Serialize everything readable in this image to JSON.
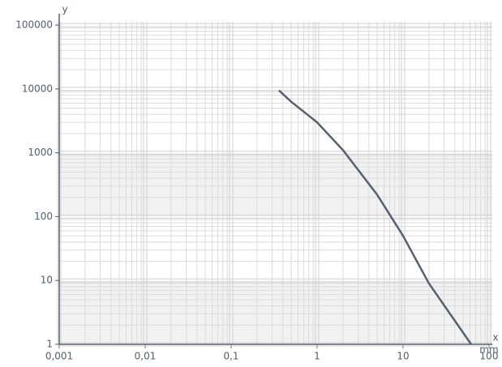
{
  "chart_data": {
    "type": "line",
    "x_label": "x",
    "x_unit": "mm",
    "y_label": "y",
    "xscale": "log",
    "yscale": "log",
    "grid": true,
    "xlim": [
      0.001,
      100
    ],
    "ylim": [
      1,
      100000
    ],
    "xticks": [
      {
        "value": 0.001,
        "label": "0,001"
      },
      {
        "value": 0.01,
        "label": "0,01"
      },
      {
        "value": 0.1,
        "label": "0,1"
      },
      1,
      10,
      100
    ],
    "yticks": [
      1,
      10,
      100,
      1000,
      10000,
      100000
    ],
    "bands": [
      {
        "from": 1,
        "to": 10
      },
      {
        "from": 100,
        "to": 1000
      }
    ],
    "band_color": "#f2f2f2",
    "series": [
      {
        "color": "#58616b",
        "x": [
          0.36,
          0.5,
          1,
          2,
          5,
          10,
          20,
          62
        ],
        "values": [
          9500,
          6300,
          3000,
          1100,
          220,
          50,
          9,
          1
        ]
      }
    ]
  }
}
